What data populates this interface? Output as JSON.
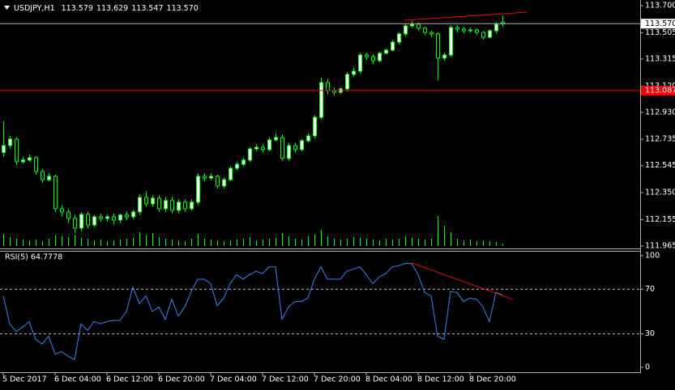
{
  "chart_data": [
    {
      "type": "candlestick",
      "title": "USDJPY,H1",
      "info": [
        "113.579",
        "113.629",
        "113.547",
        "113.570"
      ],
      "open": [
        112.64,
        112.69,
        112.737,
        112.573,
        112.585,
        112.602,
        112.503,
        112.444,
        112.468,
        112.234,
        112.211,
        112.164,
        112.094,
        112.193,
        112.117,
        112.176,
        112.164,
        112.176,
        112.152,
        112.188,
        112.176,
        112.211,
        112.316,
        112.269,
        112.31,
        112.234,
        112.293,
        112.223,
        112.281,
        112.234,
        112.281,
        112.468,
        112.456,
        112.468,
        112.398,
        112.444,
        112.526,
        112.555,
        112.585,
        112.666,
        112.678,
        112.661,
        112.731,
        112.748,
        112.597,
        112.69,
        112.661,
        112.725,
        112.76,
        112.894,
        113.145,
        113.087,
        113.075,
        113.099,
        113.204,
        113.227,
        113.344,
        113.332,
        113.303,
        113.356,
        113.379,
        113.437,
        113.496,
        113.554,
        113.566,
        113.537,
        113.507,
        113.496,
        113.321,
        113.344,
        113.542,
        113.531,
        113.519,
        113.525,
        113.507,
        113.472,
        113.519,
        113.579
      ],
      "high": [
        112.87,
        112.76,
        112.75,
        112.61,
        112.625,
        112.615,
        112.52,
        112.49,
        112.48,
        112.26,
        112.23,
        112.19,
        112.21,
        112.215,
        112.19,
        112.2,
        112.19,
        112.2,
        112.2,
        112.215,
        112.225,
        112.34,
        112.36,
        112.33,
        112.33,
        112.32,
        112.32,
        112.3,
        112.3,
        112.3,
        112.49,
        112.49,
        112.49,
        112.48,
        112.46,
        112.54,
        112.57,
        112.6,
        112.68,
        112.7,
        112.7,
        112.75,
        112.78,
        112.77,
        112.71,
        112.71,
        112.74,
        112.78,
        112.91,
        113.18,
        113.17,
        113.11,
        113.11,
        113.22,
        113.25,
        113.36,
        113.36,
        113.35,
        113.37,
        113.39,
        113.45,
        113.51,
        113.57,
        113.59,
        113.58,
        113.55,
        113.52,
        113.51,
        113.36,
        113.56,
        113.56,
        113.545,
        113.54,
        113.535,
        113.515,
        113.53,
        113.58,
        113.629
      ],
      "low": [
        112.61,
        112.67,
        112.55,
        112.56,
        112.57,
        112.48,
        112.42,
        112.43,
        112.21,
        112.18,
        112.13,
        112.06,
        112.07,
        112.09,
        112.1,
        112.14,
        112.14,
        112.12,
        112.13,
        112.15,
        112.16,
        112.19,
        112.25,
        112.25,
        112.21,
        112.21,
        112.2,
        112.2,
        112.21,
        112.22,
        112.26,
        112.43,
        112.44,
        112.38,
        112.38,
        112.43,
        112.51,
        112.54,
        112.57,
        112.65,
        112.64,
        112.65,
        112.72,
        112.58,
        112.58,
        112.64,
        112.65,
        112.71,
        112.74,
        112.88,
        113.06,
        113.05,
        113.06,
        113.08,
        113.19,
        113.21,
        113.31,
        113.28,
        113.29,
        113.35,
        113.37,
        113.42,
        113.48,
        113.54,
        113.52,
        113.49,
        113.47,
        113.16,
        113.3,
        113.33,
        113.51,
        113.5,
        113.505,
        113.49,
        113.455,
        113.465,
        113.5,
        113.547
      ],
      "close": [
        112.69,
        112.737,
        112.573,
        112.585,
        112.602,
        112.503,
        112.444,
        112.468,
        112.234,
        112.211,
        112.164,
        112.094,
        112.193,
        112.117,
        112.176,
        112.164,
        112.176,
        112.152,
        112.188,
        112.176,
        112.211,
        112.316,
        112.269,
        112.31,
        112.234,
        112.293,
        112.223,
        112.281,
        112.234,
        112.281,
        112.468,
        112.456,
        112.468,
        112.398,
        112.444,
        112.526,
        112.555,
        112.585,
        112.666,
        112.678,
        112.661,
        112.731,
        112.748,
        112.597,
        112.69,
        112.661,
        112.725,
        112.76,
        112.894,
        113.145,
        113.087,
        113.075,
        113.099,
        113.204,
        113.227,
        113.344,
        113.332,
        113.303,
        113.356,
        113.379,
        113.437,
        113.496,
        113.554,
        113.566,
        113.537,
        113.507,
        113.496,
        113.321,
        113.344,
        113.542,
        113.531,
        113.519,
        113.525,
        113.507,
        113.472,
        113.519,
        113.566,
        113.57
      ],
      "volume": [
        1500,
        1100,
        900,
        800,
        700,
        800,
        600,
        900,
        1300,
        1200,
        1100,
        1400,
        1000,
        900,
        700,
        800,
        600,
        700,
        800,
        900,
        1000,
        1700,
        1300,
        1600,
        1100,
        900,
        800,
        700,
        600,
        900,
        1500,
        900,
        800,
        700,
        600,
        700,
        800,
        900,
        1100,
        700,
        800,
        900,
        1000,
        1600,
        1200,
        900,
        800,
        1200,
        1400,
        2000,
        1200,
        900,
        800,
        900,
        1100,
        1000,
        900,
        800,
        700,
        900,
        800,
        900,
        1200,
        1000,
        900,
        800,
        900,
        3700,
        2500,
        1700,
        900,
        700,
        800,
        600,
        700,
        600,
        500,
        300
      ],
      "up_color": "#ffffff",
      "down_color": "#000000",
      "wick_color": "#00ff00",
      "volume_color": "#00ff00",
      "ylim": [
        111.965,
        113.7
      ],
      "yticks": [
        111.965,
        112.155,
        {
          "value": 112.35,
          "label": "112.350"
        },
        112.545,
        112.735,
        {
          "value": 112.93,
          "label": "112.930"
        },
        {
          "value": 113.12,
          "label": "113.120"
        },
        113.315,
        113.505,
        {
          "value": 113.7,
          "label": "113.700"
        }
      ],
      "last_price": {
        "value": 113.57,
        "label": "113.570"
      },
      "hline": {
        "value": 113.087,
        "label": "113.087",
        "color": "#ff0000"
      },
      "trend_line": {
        "x": [
          62,
          80.75
        ],
        "values": [
          113.595,
          113.653
        ],
        "color": "#ff0000"
      }
    },
    {
      "type": "line",
      "title": "RSI(5) 64.7778",
      "categories": [
        "5 Dec 2017",
        null,
        null,
        null,
        null,
        null,
        null,
        null,
        "6 Dec 04:00",
        null,
        null,
        null,
        null,
        null,
        null,
        null,
        "6 Dec 12:00",
        null,
        null,
        null,
        null,
        null,
        null,
        null,
        "6 Dec 20:00",
        null,
        null,
        null,
        null,
        null,
        null,
        null,
        "7 Dec 04:00",
        null,
        null,
        null,
        null,
        null,
        null,
        null,
        "7 Dec 12:00",
        null,
        null,
        null,
        null,
        null,
        null,
        null,
        "7 Dec 20:00",
        null,
        null,
        null,
        null,
        null,
        null,
        null,
        "8 Dec 04:00",
        null,
        null,
        null,
        null,
        null,
        null,
        null,
        "8 Dec 12:00",
        null,
        null,
        null,
        null,
        null,
        null,
        null,
        "8 Dec 20:00",
        null,
        null,
        null,
        null,
        null
      ],
      "values": [
        64,
        39,
        32,
        36,
        41,
        25,
        21,
        28,
        12,
        14,
        10,
        7,
        39,
        33,
        41,
        39,
        41,
        42,
        42,
        50,
        72,
        57,
        64,
        50,
        54,
        43,
        61,
        46,
        54,
        68,
        79,
        79,
        75,
        55,
        62,
        75,
        83,
        79,
        83,
        86,
        84,
        90,
        90,
        43,
        54,
        59,
        59,
        62,
        79,
        90,
        79,
        79,
        79,
        86,
        88,
        90,
        83,
        75,
        81,
        84,
        90,
        91,
        93,
        93,
        83,
        67,
        64,
        28,
        25,
        68,
        67,
        59,
        62,
        61,
        54,
        41,
        67,
        64.7778
      ],
      "color": "#3c82ff",
      "ylim": [
        0,
        100
      ],
      "yticks": [
        0,
        30,
        70,
        100
      ],
      "levels": [
        30,
        70
      ],
      "level_color": "#c0c0c0",
      "trend_line": {
        "x": [
          63,
          78.6
        ],
        "values": [
          93.5,
          60.9
        ],
        "color": "#ff0000"
      }
    }
  ]
}
